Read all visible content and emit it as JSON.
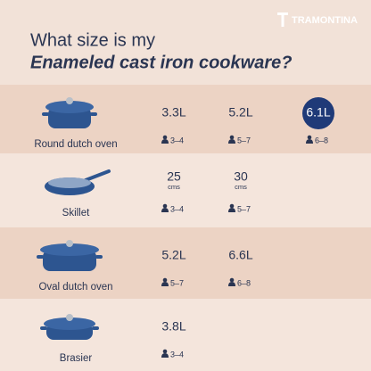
{
  "brand": "TRAMONTINA",
  "title": {
    "line1": "What size is my",
    "line2": "Enameled cast iron cookware?"
  },
  "products": [
    {
      "name": "Round dutch oven",
      "sizes": [
        {
          "size": "3.3L",
          "people": "3–4"
        },
        {
          "size": "5.2L",
          "people": "5–7"
        },
        {
          "size": "6.1L",
          "people": "6–8",
          "highlighted": true
        }
      ]
    },
    {
      "name": "Skillet",
      "sizes": [
        {
          "size": "25",
          "unit": "cms",
          "people": "3–4"
        },
        {
          "size": "30",
          "unit": "cms",
          "people": "5–7"
        }
      ]
    },
    {
      "name": "Oval dutch oven",
      "sizes": [
        {
          "size": "5.2L",
          "people": "5–7"
        },
        {
          "size": "6.6L",
          "people": "6–8"
        }
      ]
    },
    {
      "name": "Brasier",
      "sizes": [
        {
          "size": "3.8L",
          "people": "3–4"
        }
      ]
    }
  ]
}
